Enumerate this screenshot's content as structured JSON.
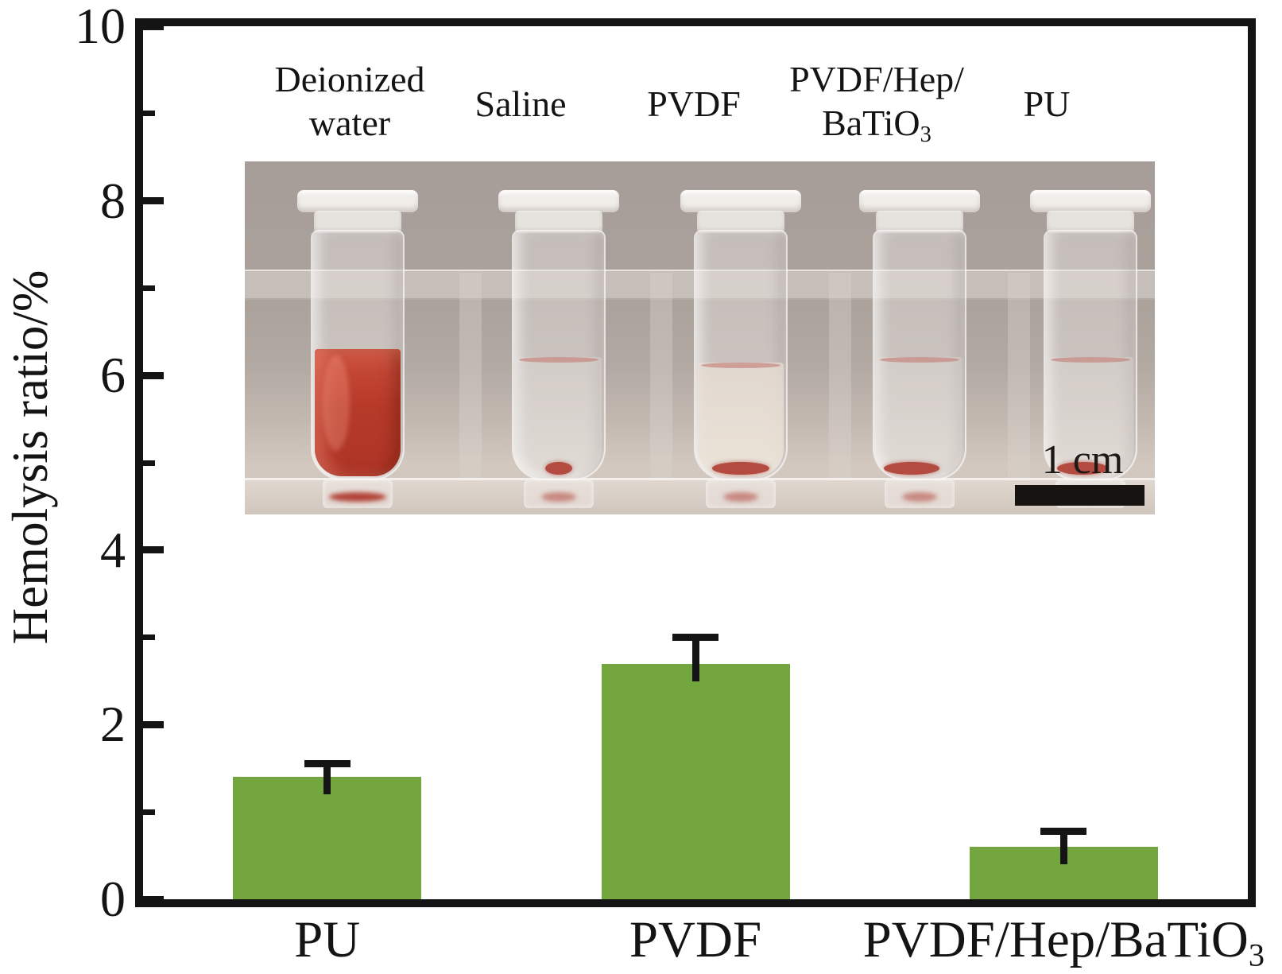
{
  "chart_data": {
    "type": "bar",
    "title": "",
    "ylabel": "Hemolysis ratio/%",
    "xlabel": "",
    "categories": [
      "PU",
      "PVDF",
      "PVDF/Hep/BaTiO₃"
    ],
    "values": [
      1.4,
      2.7,
      0.6
    ],
    "error_plus": [
      0.15,
      0.3,
      0.18
    ],
    "ylim": [
      0,
      10
    ],
    "yticks": [
      0,
      2,
      4,
      6,
      8,
      10
    ],
    "minor_yticks": [
      1,
      3,
      5,
      7,
      9
    ],
    "grid": false,
    "legend": "none",
    "bar_color": "#73a63e",
    "axis_color": "#141414"
  },
  "inset": {
    "tube_labels": [
      "Deionized\nwater",
      "Saline",
      "PVDF",
      "PVDF/Hep/\nBaTiO₃",
      "PU"
    ],
    "scale_bar_label": "1 cm",
    "tubes": [
      {
        "name": "deionized-water-tube",
        "liquid": "red",
        "meniscus": false,
        "sediment": 0
      },
      {
        "name": "saline-tube",
        "liquid": "clear",
        "meniscus": true,
        "sediment": 34
      },
      {
        "name": "pvdf-tube",
        "liquid": "milky",
        "meniscus": true,
        "sediment": 72
      },
      {
        "name": "pvdf-hep-batio3-tube",
        "liquid": "clear",
        "meniscus": true,
        "sediment": 70
      },
      {
        "name": "pu-tube",
        "liquid": "clear",
        "meniscus": true,
        "sediment": 64
      }
    ],
    "colors": {
      "red_liquid": "#b73a29",
      "sediment": "#b44b40",
      "photo_background": "#aba29c",
      "scale_bar": "#171310"
    }
  }
}
